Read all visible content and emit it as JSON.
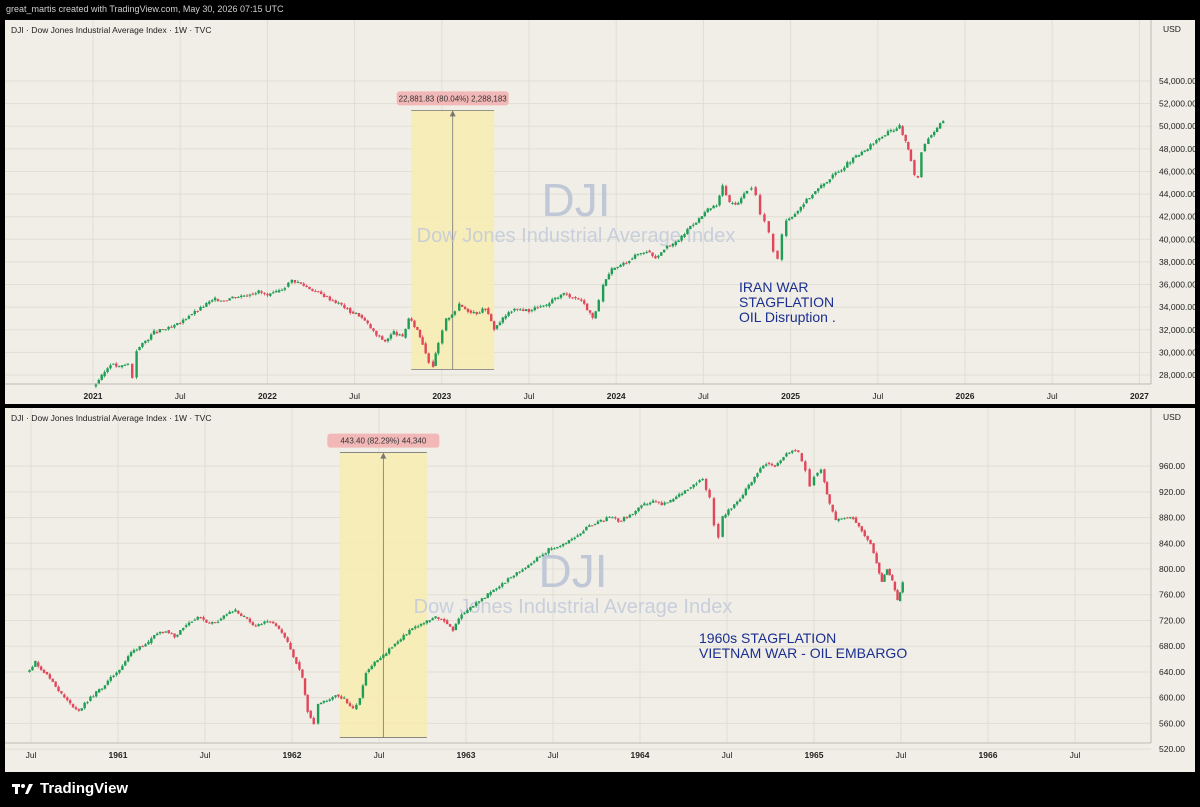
{
  "header": {
    "text": "great_martis created with TradingView.com, May 30, 2026 07:15 UTC"
  },
  "footer": {
    "brand": "TradingView",
    "logo_icon": "tradingview-logo-icon"
  },
  "chart_data": [
    {
      "type": "candlestick",
      "title": "DJI · Dow Jones Industrial Average Index · 1W · TVC",
      "watermark": "DJI",
      "watermark_sub": "Dow Jones Industrial Average Index",
      "currency": "USD",
      "y_ticks": [
        "28,000.00",
        "30,000.00",
        "32,000.00",
        "34,000.00",
        "36,000.00",
        "38,000.00",
        "40,000.00",
        "42,000.00",
        "44,000.00",
        "46,000.00",
        "48,000.00",
        "50,000.00",
        "52,000.00",
        "54,000.00"
      ],
      "ylim": [
        26500,
        55500
      ],
      "x_ticks": [
        "2021",
        "Jul",
        "2022",
        "Jul",
        "2023",
        "Jul",
        "2024",
        "Jul",
        "2025",
        "Jul",
        "2026",
        "Jul",
        "2027"
      ],
      "bold_x_ticks": [
        "2021",
        "2022",
        "2023",
        "2024",
        "2025",
        "2026",
        "2027"
      ],
      "measure_label": "22,881.83 (80.04%) 2,288,183",
      "measure": {
        "low": 28500,
        "high": 51400,
        "start_index": 3.65,
        "end_index": 4.6
      },
      "annotation": [
        "IRAN WAR",
        "STAGFLATION",
        "OIL Disruption ."
      ],
      "grid": true,
      "series": [
        [
          0,
          27000
        ],
        [
          0.1,
          27900
        ],
        [
          0.2,
          29000
        ],
        [
          0.3,
          28700
        ],
        [
          0.4,
          29000
        ],
        [
          0.45,
          27800
        ],
        [
          0.5,
          30200
        ],
        [
          0.6,
          31000
        ],
        [
          0.7,
          31800
        ],
        [
          0.8,
          32000
        ],
        [
          0.9,
          32200
        ],
        [
          1.0,
          32600
        ],
        [
          1.1,
          33300
        ],
        [
          1.2,
          33700
        ],
        [
          1.3,
          34300
        ],
        [
          1.4,
          34700
        ],
        [
          1.5,
          34600
        ],
        [
          1.6,
          34900
        ],
        [
          1.7,
          35000
        ],
        [
          1.8,
          35200
        ],
        [
          1.9,
          35400
        ],
        [
          2.0,
          35000
        ],
        [
          2.1,
          35300
        ],
        [
          2.2,
          35800
        ],
        [
          2.28,
          36400
        ],
        [
          2.35,
          36200
        ],
        [
          2.45,
          35800
        ],
        [
          2.55,
          35400
        ],
        [
          2.65,
          35000
        ],
        [
          2.75,
          34600
        ],
        [
          2.85,
          34200
        ],
        [
          2.95,
          33600
        ],
        [
          3.05,
          33300
        ],
        [
          3.15,
          32500
        ],
        [
          3.25,
          31500
        ],
        [
          3.35,
          31000
        ],
        [
          3.45,
          31800
        ],
        [
          3.55,
          31300
        ],
        [
          3.62,
          33000
        ],
        [
          3.72,
          32000
        ],
        [
          3.78,
          30800
        ],
        [
          3.85,
          29200
        ],
        [
          3.9,
          28800
        ],
        [
          3.96,
          30800
        ],
        [
          4.05,
          32900
        ],
        [
          4.15,
          33700
        ],
        [
          4.2,
          34200
        ],
        [
          4.3,
          33700
        ],
        [
          4.4,
          33500
        ],
        [
          4.5,
          33900
        ],
        [
          4.6,
          32100
        ],
        [
          4.7,
          33000
        ],
        [
          4.8,
          33700
        ],
        [
          4.9,
          33800
        ],
        [
          5.0,
          33700
        ],
        [
          5.1,
          34000
        ],
        [
          5.2,
          34100
        ],
        [
          5.3,
          34800
        ],
        [
          5.4,
          35200
        ],
        [
          5.5,
          34900
        ],
        [
          5.6,
          34600
        ],
        [
          5.7,
          33500
        ],
        [
          5.73,
          33000
        ],
        [
          5.8,
          34500
        ],
        [
          5.85,
          35900
        ],
        [
          5.95,
          37300
        ],
        [
          6.05,
          37700
        ],
        [
          6.15,
          38200
        ],
        [
          6.25,
          38700
        ],
        [
          6.35,
          39000
        ],
        [
          6.45,
          38400
        ],
        [
          6.55,
          39200
        ],
        [
          6.65,
          39500
        ],
        [
          6.75,
          40200
        ],
        [
          6.85,
          41200
        ],
        [
          6.95,
          41800
        ],
        [
          7.05,
          42600
        ],
        [
          7.15,
          43000
        ],
        [
          7.22,
          44700
        ],
        [
          7.3,
          43200
        ],
        [
          7.4,
          43200
        ],
        [
          7.5,
          44400
        ],
        [
          7.55,
          44600
        ],
        [
          7.6,
          43900
        ],
        [
          7.65,
          42200
        ],
        [
          7.7,
          41600
        ],
        [
          7.75,
          40500
        ],
        [
          7.8,
          39000
        ],
        [
          7.85,
          38200
        ],
        [
          7.9,
          40300
        ],
        [
          7.95,
          41700
        ],
        [
          8.05,
          42300
        ],
        [
          8.15,
          43200
        ],
        [
          8.25,
          44000
        ],
        [
          8.35,
          44700
        ],
        [
          8.45,
          45400
        ],
        [
          8.55,
          46000
        ],
        [
          8.65,
          46700
        ],
        [
          8.75,
          47300
        ],
        [
          8.85,
          47800
        ],
        [
          8.95,
          48500
        ],
        [
          9.05,
          49100
        ],
        [
          9.15,
          49600
        ],
        [
          9.25,
          50000
        ],
        [
          9.32,
          48600
        ],
        [
          9.38,
          47000
        ],
        [
          9.42,
          45600
        ],
        [
          9.46,
          45500
        ],
        [
          9.5,
          47800
        ],
        [
          9.58,
          49000
        ],
        [
          9.68,
          49800
        ],
        [
          9.75,
          50500
        ]
      ]
    },
    {
      "type": "candlestick",
      "title": "DJI · Dow Jones Industrial Average Index · 1W · TVC",
      "watermark": "DJI",
      "watermark_sub": "Dow Jones Industrial Average Index",
      "currency": "USD",
      "y_ticks": [
        "520.00",
        "560.00",
        "600.00",
        "640.00",
        "680.00",
        "720.00",
        "760.00",
        "800.00",
        "840.00",
        "880.00",
        "920.00",
        "960.00"
      ],
      "ylim": [
        500,
        985
      ],
      "x_ticks": [
        "Jul",
        "1961",
        "Jul",
        "1962",
        "Jul",
        "1963",
        "Jul",
        "1964",
        "Jul",
        "1965",
        "Jul",
        "1966",
        "Jul"
      ],
      "bold_x_ticks": [
        "1961",
        "1962",
        "1963",
        "1964",
        "1965",
        "1966"
      ],
      "measure_label": "443.40 (82.29%) 44,340",
      "measure": {
        "low": 538,
        "high": 981,
        "start_index": 3.55,
        "end_index": 4.55
      },
      "annotation": [
        "1960s STAGFLATION",
        "VIETNAM WAR - OIL EMBARGO"
      ],
      "grid": true,
      "series": [
        [
          -0.05,
          640
        ],
        [
          0.05,
          655
        ],
        [
          0.15,
          640
        ],
        [
          0.25,
          625
        ],
        [
          0.35,
          605
        ],
        [
          0.45,
          590
        ],
        [
          0.55,
          580
        ],
        [
          0.65,
          595
        ],
        [
          0.75,
          608
        ],
        [
          0.85,
          620
        ],
        [
          0.95,
          635
        ],
        [
          1.05,
          650
        ],
        [
          1.15,
          670
        ],
        [
          1.25,
          680
        ],
        [
          1.35,
          685
        ],
        [
          1.45,
          700
        ],
        [
          1.55,
          705
        ],
        [
          1.65,
          695
        ],
        [
          1.75,
          710
        ],
        [
          1.85,
          720
        ],
        [
          1.95,
          725
        ],
        [
          2.05,
          715
        ],
        [
          2.15,
          720
        ],
        [
          2.25,
          730
        ],
        [
          2.35,
          735
        ],
        [
          2.45,
          725
        ],
        [
          2.55,
          712
        ],
        [
          2.65,
          715
        ],
        [
          2.75,
          718
        ],
        [
          2.85,
          706
        ],
        [
          2.95,
          685
        ],
        [
          3.05,
          655
        ],
        [
          3.12,
          630
        ],
        [
          3.18,
          580
        ],
        [
          3.25,
          560
        ],
        [
          3.3,
          590
        ],
        [
          3.4,
          595
        ],
        [
          3.5,
          605
        ],
        [
          3.6,
          598
        ],
        [
          3.7,
          582
        ],
        [
          3.78,
          600
        ],
        [
          3.85,
          640
        ],
        [
          3.95,
          655
        ],
        [
          4.05,
          665
        ],
        [
          4.15,
          680
        ],
        [
          4.25,
          690
        ],
        [
          4.35,
          705
        ],
        [
          4.45,
          712
        ],
        [
          4.55,
          718
        ],
        [
          4.65,
          725
        ],
        [
          4.75,
          720
        ],
        [
          4.85,
          705
        ],
        [
          4.95,
          730
        ],
        [
          5.05,
          740
        ],
        [
          5.15,
          750
        ],
        [
          5.25,
          760
        ],
        [
          5.35,
          770
        ],
        [
          5.45,
          780
        ],
        [
          5.55,
          790
        ],
        [
          5.65,
          800
        ],
        [
          5.75,
          810
        ],
        [
          5.85,
          820
        ],
        [
          5.95,
          830
        ],
        [
          6.05,
          835
        ],
        [
          6.15,
          840
        ],
        [
          6.25,
          850
        ],
        [
          6.35,
          860
        ],
        [
          6.45,
          870
        ],
        [
          6.55,
          875
        ],
        [
          6.65,
          880
        ],
        [
          6.75,
          875
        ],
        [
          6.85,
          880
        ],
        [
          6.95,
          890
        ],
        [
          7.05,
          900
        ],
        [
          7.15,
          905
        ],
        [
          7.25,
          900
        ],
        [
          7.35,
          905
        ],
        [
          7.45,
          915
        ],
        [
          7.55,
          925
        ],
        [
          7.65,
          935
        ],
        [
          7.72,
          940
        ],
        [
          7.8,
          910
        ],
        [
          7.85,
          870
        ],
        [
          7.9,
          850
        ],
        [
          7.95,
          880
        ],
        [
          8.05,
          895
        ],
        [
          8.15,
          910
        ],
        [
          8.25,
          930
        ],
        [
          8.35,
          950
        ],
        [
          8.45,
          965
        ],
        [
          8.55,
          960
        ],
        [
          8.65,
          975
        ],
        [
          8.75,
          985
        ],
        [
          8.82,
          980
        ],
        [
          8.9,
          955
        ],
        [
          8.95,
          930
        ],
        [
          9.0,
          945
        ],
        [
          9.08,
          955
        ],
        [
          9.12,
          935
        ],
        [
          9.18,
          900
        ],
        [
          9.25,
          875
        ],
        [
          9.35,
          880
        ],
        [
          9.45,
          880
        ],
        [
          9.55,
          860
        ],
        [
          9.65,
          840
        ],
        [
          9.72,
          810
        ],
        [
          9.78,
          780
        ],
        [
          9.84,
          800
        ],
        [
          9.9,
          780
        ],
        [
          9.96,
          750
        ],
        [
          10.02,
          780
        ]
      ]
    }
  ]
}
